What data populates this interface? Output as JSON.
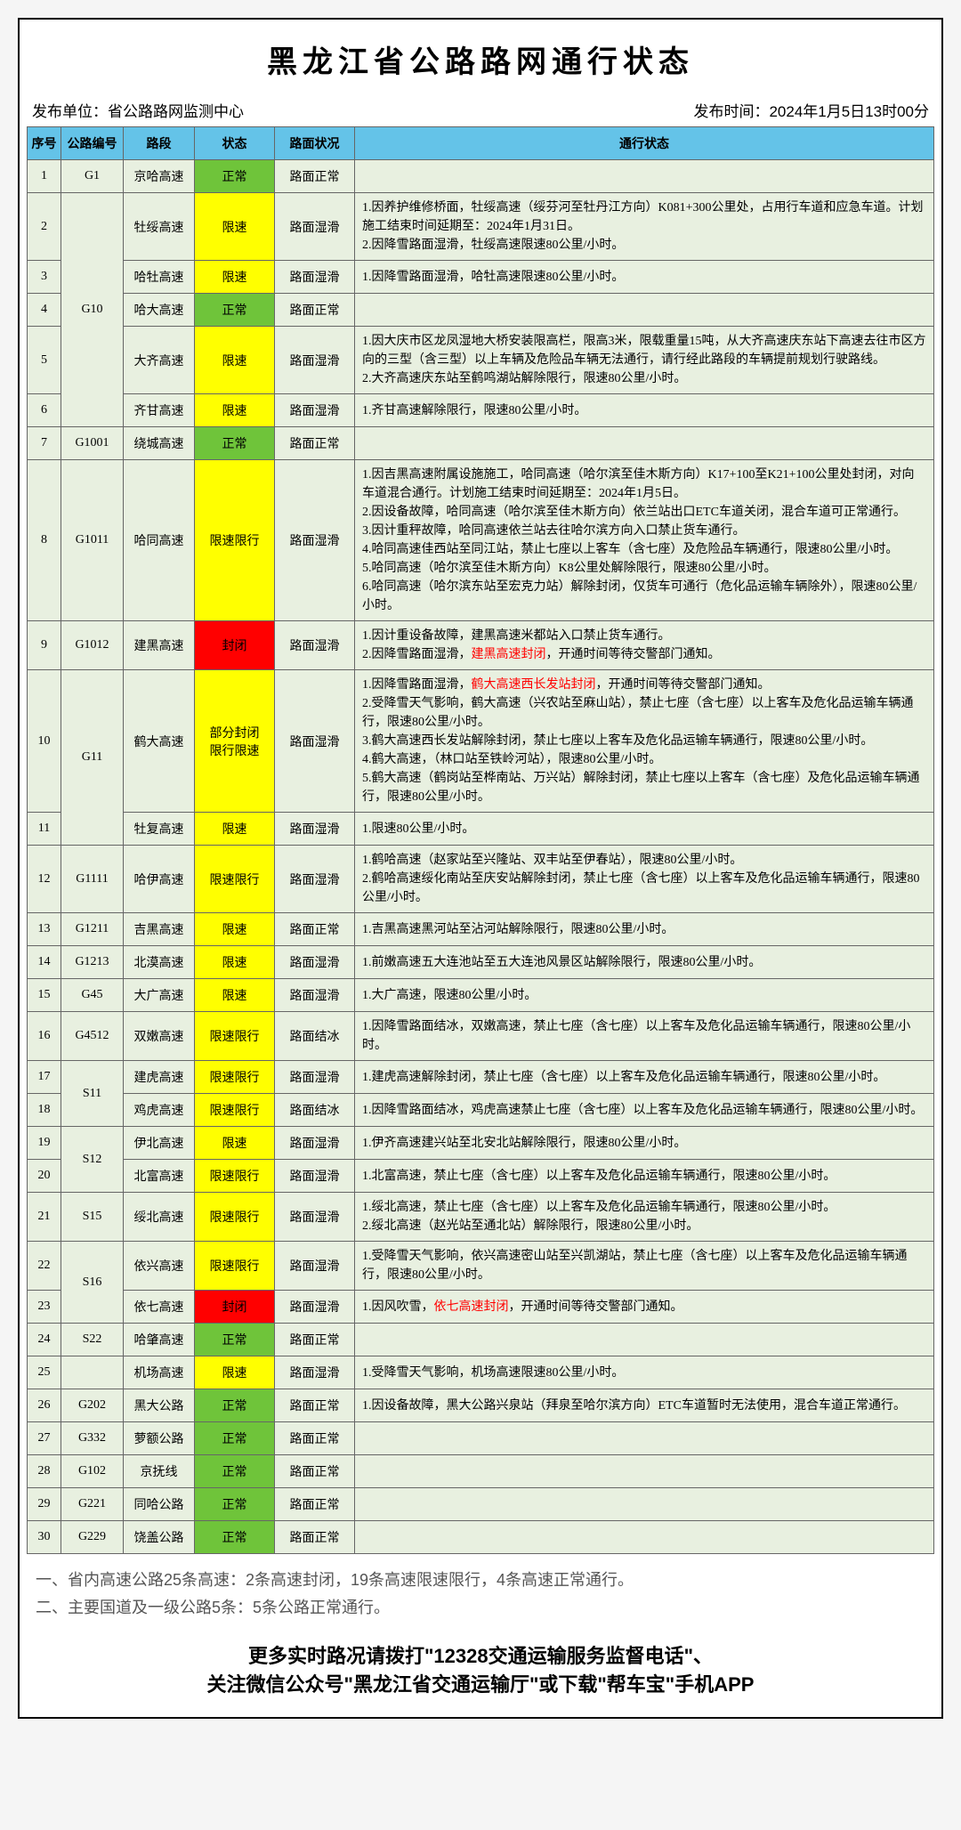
{
  "title": "黑龙江省公路路网通行状态",
  "publisher_label": "发布单位：",
  "publisher": "省公路路网监测中心",
  "time_label": "发布时间：",
  "time": "2024年1月5日13时00分",
  "headers": [
    "序号",
    "公路编号",
    "路段",
    "状态",
    "路面状况",
    "通行状态"
  ],
  "status_colors": {
    "正常": "normal",
    "限速": "limit",
    "限速限行": "limit",
    "部分封闭限行限速": "limit",
    "部分封闭\n限行限速": "limit",
    "封闭": "closed"
  },
  "rows": [
    {
      "no": "1",
      "code": "G1",
      "code_rowspan": 1,
      "section": "京哈高速",
      "status": "正常",
      "surface": "路面正常",
      "details": []
    },
    {
      "no": "2",
      "code": "G10",
      "code_rowspan": 5,
      "section": "牡绥高速",
      "status": "限速",
      "surface": "路面湿滑",
      "details": [
        "1.因养护维修桥面，牡绥高速（绥芬河至牡丹江方向）K081+300公里处，占用行车道和应急车道。计划施工结束时间延期至：2024年1月31日。",
        "2.因降雪路面湿滑，牡绥高速限速80公里/小时。"
      ]
    },
    {
      "no": "3",
      "section": "哈牡高速",
      "status": "限速",
      "surface": "路面湿滑",
      "details": [
        "1.因降雪路面湿滑，哈牡高速限速80公里/小时。"
      ]
    },
    {
      "no": "4",
      "section": "哈大高速",
      "status": "正常",
      "surface": "路面正常",
      "details": []
    },
    {
      "no": "5",
      "section": "大齐高速",
      "status": "限速",
      "surface": "路面湿滑",
      "details": [
        "1.因大庆市区龙凤湿地大桥安装限高栏，限高3米，限载重量15吨，从大齐高速庆东站下高速去往市区方向的三型（含三型）以上车辆及危险品车辆无法通行，请行经此路段的车辆提前规划行驶路线。",
        "2.大齐高速庆东站至鹤鸣湖站解除限行，限速80公里/小时。"
      ]
    },
    {
      "no": "6",
      "section": "齐甘高速",
      "status": "限速",
      "surface": "路面湿滑",
      "details": [
        "1.齐甘高速解除限行，限速80公里/小时。"
      ]
    },
    {
      "no": "7",
      "code": "G1001",
      "code_rowspan": 1,
      "section": "绕城高速",
      "status": "正常",
      "surface": "路面正常",
      "details": []
    },
    {
      "no": "8",
      "code": "G1011",
      "code_rowspan": 1,
      "section": "哈同高速",
      "status": "限速限行",
      "surface": "路面湿滑",
      "details": [
        "1.因吉黑高速附属设施施工，哈同高速（哈尔滨至佳木斯方向）K17+100至K21+100公里处封闭，对向车道混合通行。计划施工结束时间延期至：2024年1月5日。",
        "2.因设备故障，哈同高速（哈尔滨至佳木斯方向）依兰站出口ETC车道关闭，混合车道可正常通行。",
        "3.因计重秤故障，哈同高速依兰站去往哈尔滨方向入口禁止货车通行。",
        "4.哈同高速佳西站至同江站，禁止七座以上客车（含七座）及危险品车辆通行，限速80公里/小时。",
        "5.哈同高速（哈尔滨至佳木斯方向）K8公里处解除限行，限速80公里/小时。",
        "6.哈同高速（哈尔滨东站至宏克力站）解除封闭，仅货车可通行（危化品运输车辆除外），限速80公里/小时。"
      ]
    },
    {
      "no": "9",
      "code": "G1012",
      "code_rowspan": 1,
      "section": "建黑高速",
      "status": "封闭",
      "surface": "路面湿滑",
      "details": [
        "1.因计重设备故障，建黑高速米都站入口禁止货车通行。",
        {
          "text": "2.因降雪路面湿滑，",
          "red": "建黑高速封闭",
          "after": "，开通时间等待交警部门通知。"
        }
      ]
    },
    {
      "no": "10",
      "code": "G11",
      "code_rowspan": 2,
      "section": "鹤大高速",
      "status": "部分封闭\n限行限速",
      "surface": "路面湿滑",
      "details": [
        {
          "text": "1.因降雪路面湿滑，",
          "red": "鹤大高速西长发站封闭",
          "after": "，开通时间等待交警部门通知。"
        },
        "2.受降雪天气影响，鹤大高速（兴农站至麻山站），禁止七座（含七座）以上客车及危化品运输车辆通行，限速80公里/小时。",
        "3.鹤大高速西长发站解除封闭，禁止七座以上客车及危化品运输车辆通行，限速80公里/小时。",
        "4.鹤大高速，（林口站至铁岭河站），限速80公里/小时。",
        "5.鹤大高速（鹤岗站至桦南站、万兴站）解除封闭，禁止七座以上客车（含七座）及危化品运输车辆通行，限速80公里/小时。"
      ]
    },
    {
      "no": "11",
      "section": "牡复高速",
      "status": "限速",
      "surface": "路面湿滑",
      "details": [
        "1.限速80公里/小时。"
      ]
    },
    {
      "no": "12",
      "code": "G1111",
      "code_rowspan": 1,
      "section": "哈伊高速",
      "status": "限速限行",
      "surface": "路面湿滑",
      "details": [
        "1.鹤哈高速（赵家站至兴隆站、双丰站至伊春站），限速80公里/小时。",
        "2.鹤哈高速绥化南站至庆安站解除封闭，禁止七座（含七座）以上客车及危化品运输车辆通行，限速80公里/小时。"
      ]
    },
    {
      "no": "13",
      "code": "G1211",
      "code_rowspan": 1,
      "section": "吉黑高速",
      "status": "限速",
      "surface": "路面正常",
      "details": [
        "1.吉黑高速黑河站至沾河站解除限行，限速80公里/小时。"
      ]
    },
    {
      "no": "14",
      "code": "G1213",
      "code_rowspan": 1,
      "section": "北漠高速",
      "status": "限速",
      "surface": "路面湿滑",
      "details": [
        "1.前嫩高速五大连池站至五大连池风景区站解除限行，限速80公里/小时。"
      ]
    },
    {
      "no": "15",
      "code": "G45",
      "code_rowspan": 1,
      "section": "大广高速",
      "status": "限速",
      "surface": "路面湿滑",
      "details": [
        "1.大广高速，限速80公里/小时。"
      ]
    },
    {
      "no": "16",
      "code": "G4512",
      "code_rowspan": 1,
      "section": "双嫩高速",
      "status": "限速限行",
      "surface": "路面结冰",
      "details": [
        "1.因降雪路面结冰，双嫩高速，禁止七座（含七座）以上客车及危化品运输车辆通行，限速80公里/小时。"
      ]
    },
    {
      "no": "17",
      "code": "S11",
      "code_rowspan": 2,
      "section": "建虎高速",
      "status": "限速限行",
      "surface": "路面湿滑",
      "details": [
        "1.建虎高速解除封闭，禁止七座（含七座）以上客车及危化品运输车辆通行，限速80公里/小时。"
      ]
    },
    {
      "no": "18",
      "section": "鸡虎高速",
      "status": "限速限行",
      "surface": "路面结冰",
      "details": [
        "1.因降雪路面结冰，鸡虎高速禁止七座（含七座）以上客车及危化品运输车辆通行，限速80公里/小时。"
      ]
    },
    {
      "no": "19",
      "code": "S12",
      "code_rowspan": 2,
      "section": "伊北高速",
      "status": "限速",
      "surface": "路面湿滑",
      "details": [
        "1.伊齐高速建兴站至北安北站解除限行，限速80公里/小时。"
      ]
    },
    {
      "no": "20",
      "section": "北富高速",
      "status": "限速限行",
      "surface": "路面湿滑",
      "details": [
        "1.北富高速，禁止七座（含七座）以上客车及危化品运输车辆通行，限速80公里/小时。"
      ]
    },
    {
      "no": "21",
      "code": "S15",
      "code_rowspan": 1,
      "section": "绥北高速",
      "status": "限速限行",
      "surface": "路面湿滑",
      "details": [
        "1.绥北高速，禁止七座（含七座）以上客车及危化品运输车辆通行，限速80公里/小时。",
        "2.绥北高速（赵光站至通北站）解除限行，限速80公里/小时。"
      ]
    },
    {
      "no": "22",
      "code": "S16",
      "code_rowspan": 2,
      "section": "依兴高速",
      "status": "限速限行",
      "surface": "路面湿滑",
      "details": [
        "1.受降雪天气影响，依兴高速密山站至兴凯湖站，禁止七座（含七座）以上客车及危化品运输车辆通行，限速80公里/小时。"
      ]
    },
    {
      "no": "23",
      "section": "依七高速",
      "status": "封闭",
      "surface": "路面湿滑",
      "details": [
        {
          "text": "1.因风吹雪，",
          "red": "依七高速封闭",
          "after": "，开通时间等待交警部门通知。"
        }
      ]
    },
    {
      "no": "24",
      "code": "S22",
      "code_rowspan": 1,
      "section": "哈肇高速",
      "status": "正常",
      "surface": "路面正常",
      "details": []
    },
    {
      "no": "25",
      "code": "",
      "code_rowspan": 1,
      "section": "机场高速",
      "status": "限速",
      "surface": "路面湿滑",
      "details": [
        "1.受降雪天气影响，机场高速限速80公里/小时。"
      ]
    },
    {
      "no": "26",
      "code": "G202",
      "code_rowspan": 1,
      "section": "黑大公路",
      "status": "正常",
      "surface": "路面正常",
      "details": [
        "1.因设备故障，黑大公路兴泉站（拜泉至哈尔滨方向）ETC车道暂时无法使用，混合车道正常通行。"
      ]
    },
    {
      "no": "27",
      "code": "G332",
      "code_rowspan": 1,
      "section": "萝额公路",
      "status": "正常",
      "surface": "路面正常",
      "details": []
    },
    {
      "no": "28",
      "code": "G102",
      "code_rowspan": 1,
      "section": "京抚线",
      "status": "正常",
      "surface": "路面正常",
      "details": []
    },
    {
      "no": "29",
      "code": "G221",
      "code_rowspan": 1,
      "section": "同哈公路",
      "status": "正常",
      "surface": "路面正常",
      "details": []
    },
    {
      "no": "30",
      "code": "G229",
      "code_rowspan": 1,
      "section": "饶盖公路",
      "status": "正常",
      "surface": "路面正常",
      "details": []
    }
  ],
  "summary": [
    "一、省内高速公路25条高速：2条高速封闭，19条高速限速限行，4条高速正常通行。",
    "二、主要国道及一级公路5条：5条公路正常通行。"
  ],
  "footer": [
    "更多实时路况请拨打\"12328交通运输服务监督电话\"、",
    "关注微信公众号\"黑龙江省交通运输厅\"或下载\"帮车宝\"手机APP"
  ]
}
